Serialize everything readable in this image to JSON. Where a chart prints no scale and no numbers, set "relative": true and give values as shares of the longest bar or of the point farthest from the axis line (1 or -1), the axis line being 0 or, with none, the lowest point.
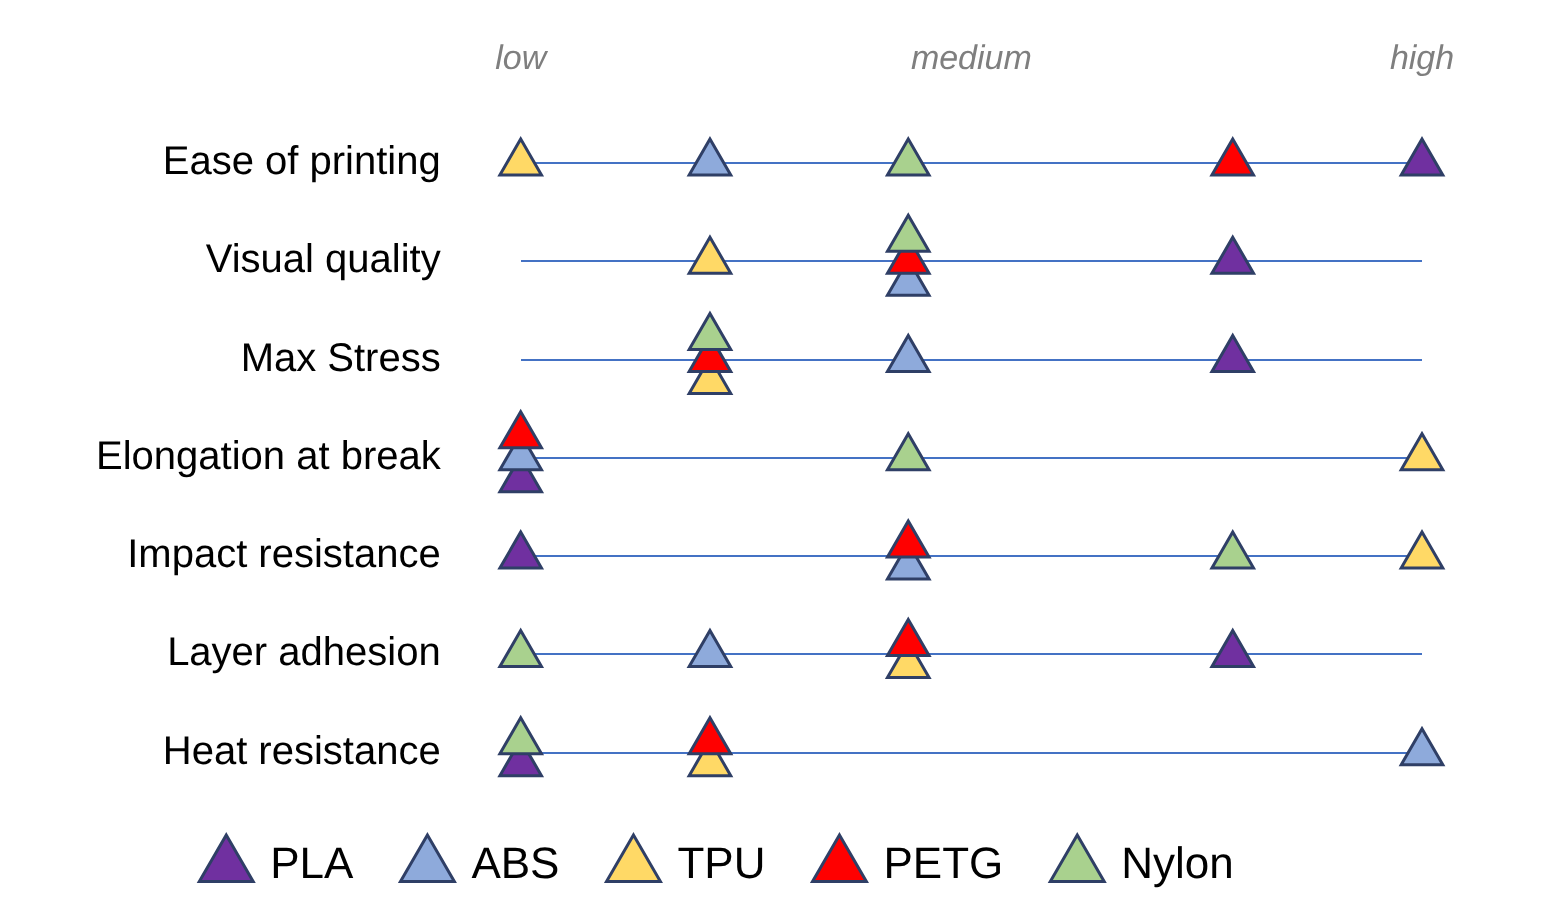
{
  "chart_data": {
    "type": "scatter",
    "orientation": "horizontal",
    "relative": true,
    "marker": "triangle",
    "grid": "y",
    "legend": "bottom",
    "categories": [
      "Ease of printing",
      "Visual quality",
      "Max Stress",
      "Elongation at break",
      "Impact resistance",
      "Layer adhesion",
      "Heat resistance"
    ],
    "annotations": [
      "low",
      "medium",
      "high"
    ],
    "series": [
      {
        "name": "PLA",
        "color": "#7030a0",
        "values": [
          1,
          0.79,
          0.79,
          0,
          0,
          0.79,
          0
        ]
      },
      {
        "name": "ABS",
        "color": "#8eaadb",
        "values": [
          0.21,
          0.43,
          0.43,
          0,
          0.43,
          0.21,
          1
        ]
      },
      {
        "name": "TPU",
        "color": "#ffd966",
        "values": [
          0,
          0.21,
          0.21,
          1,
          1,
          0.43,
          0.21
        ]
      },
      {
        "name": "PETG",
        "color": "#ff0000",
        "values": [
          0.79,
          0.43,
          0.21,
          0,
          0.43,
          0.43,
          0.21
        ]
      },
      {
        "name": "Nylon",
        "color": "#a9d18e",
        "values": [
          0.43,
          0.43,
          0.21,
          0.43,
          0.79,
          0,
          0
        ]
      }
    ]
  }
}
